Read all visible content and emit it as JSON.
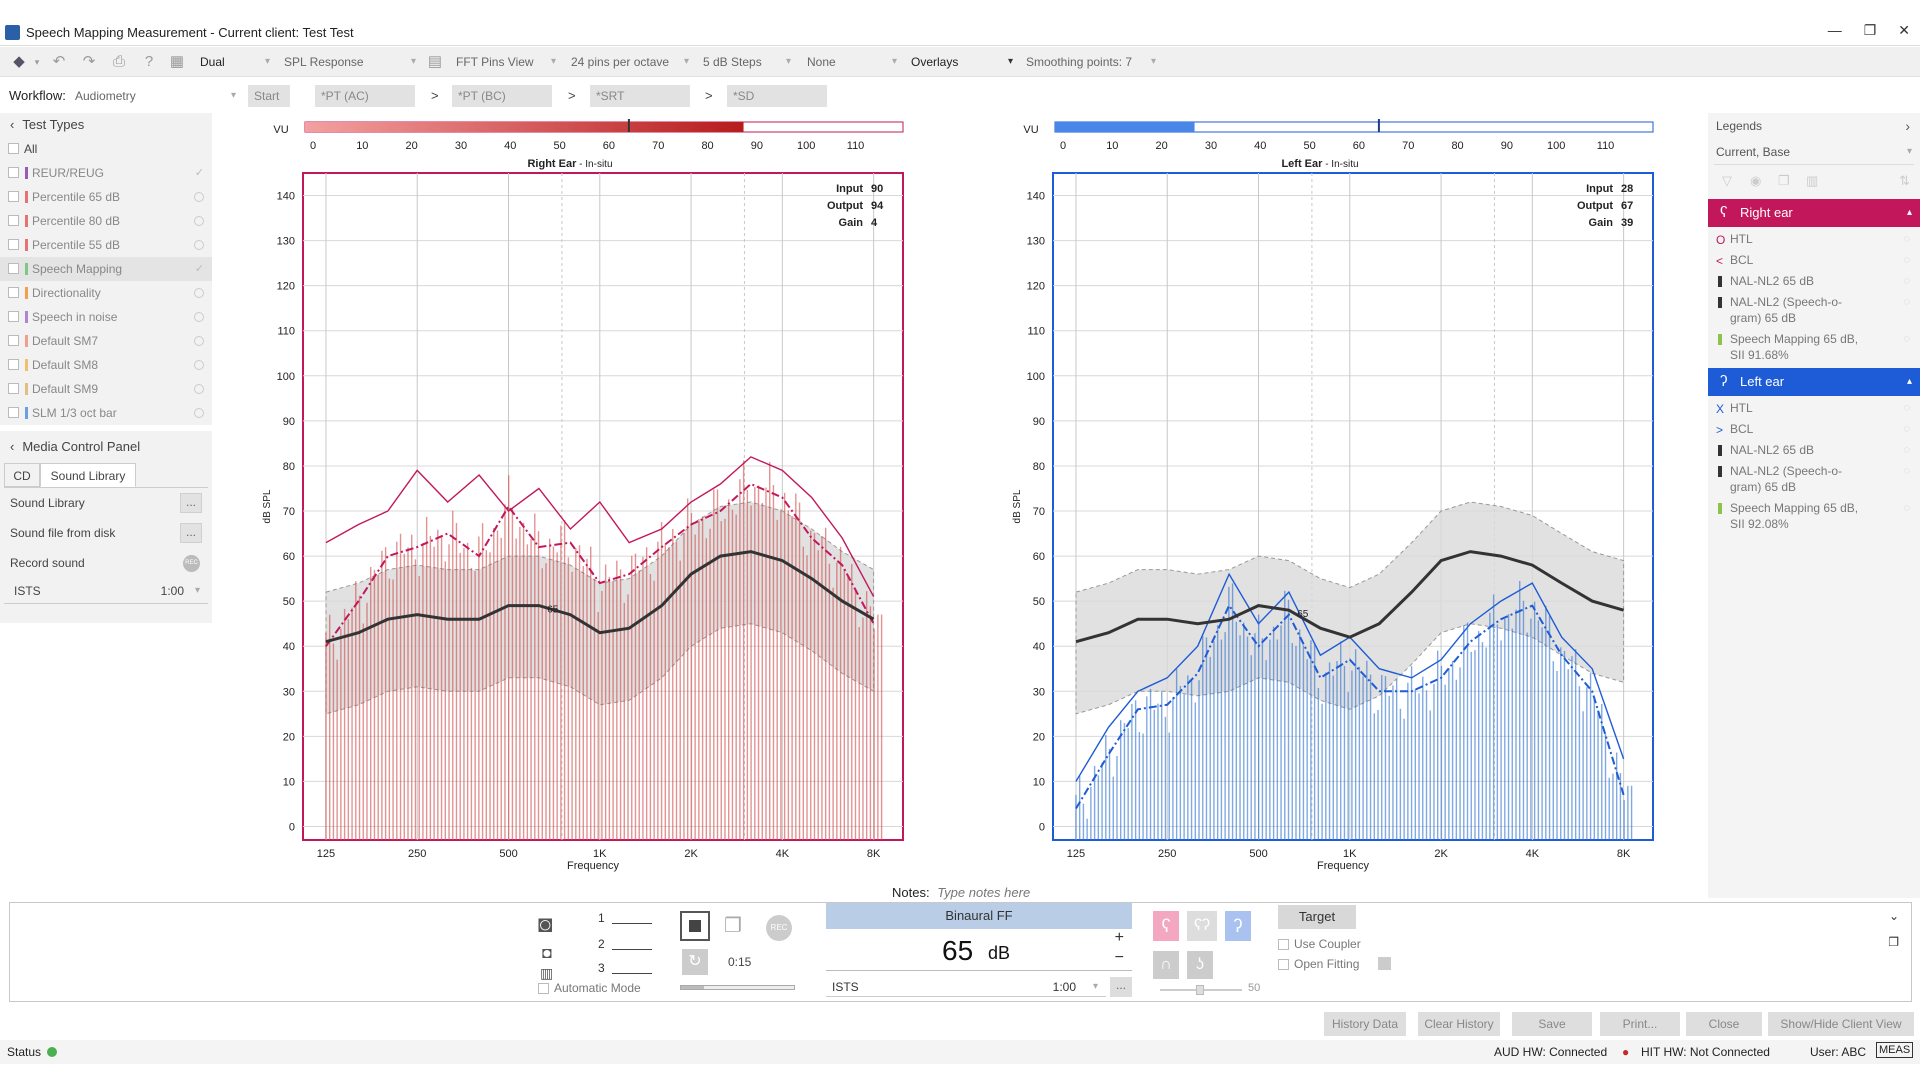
{
  "window": {
    "title": "Speech Mapping Measurement - Current client: Test Test",
    "controls": [
      "—",
      "❐",
      "✕"
    ]
  },
  "toolbar": {
    "mode": "Dual",
    "response": "SPL Response",
    "view": "FFT Pins View",
    "pins": "24 pins per octave",
    "steps": "5 dB Steps",
    "none": "None",
    "overlays": "Overlays",
    "smoothing": "Smoothing points: 7"
  },
  "workflow": {
    "label": "Workflow:",
    "value": "Audiometry",
    "start": "Start",
    "steps": [
      "*PT (AC)",
      "*PT (BC)",
      "*SRT",
      "*SD"
    ],
    "chev": ">"
  },
  "test_types": {
    "header": "Test Types",
    "all": "All",
    "items": [
      {
        "label": "REUR/REUG",
        "color": "#9b59b6",
        "state": "check"
      },
      {
        "label": "Percentile 65 dB",
        "color": "#e57373",
        "state": "radio"
      },
      {
        "label": "Percentile 80 dB",
        "color": "#e57373",
        "state": "radio"
      },
      {
        "label": "Percentile 55 dB",
        "color": "#e57373",
        "state": "radio"
      },
      {
        "label": "Speech Mapping",
        "color": "#81c784",
        "state": "check"
      },
      {
        "label": "Directionality",
        "color": "#f0a050",
        "state": "radio"
      },
      {
        "label": "Speech in noise",
        "color": "#b085d0",
        "state": "radio"
      },
      {
        "label": "Default SM7",
        "color": "#f0a090",
        "state": "radio"
      },
      {
        "label": "Default SM8",
        "color": "#f0c070",
        "state": "radio"
      },
      {
        "label": "Default SM9",
        "color": "#e0c080",
        "state": "radio"
      },
      {
        "label": "SLM 1/3 oct bar",
        "color": "#6aa0e0",
        "state": "radio"
      }
    ]
  },
  "media": {
    "header": "Media Control Panel",
    "tabs": [
      "CD",
      "Sound Library"
    ],
    "rows": [
      {
        "label": "Sound Library",
        "btn": "..."
      },
      {
        "label": "Sound file from disk",
        "btn": "..."
      },
      {
        "label": "Record sound",
        "btn": "REC"
      }
    ],
    "istc": "ISTS",
    "istc_time": "1:00"
  },
  "right_chart": {
    "vu_label": "VU",
    "vu_ticks": [
      "0",
      "10",
      "20",
      "30",
      "40",
      "50",
      "60",
      "70",
      "80",
      "90",
      "100",
      "110"
    ],
    "vu_level": 88,
    "vu_marker": 65,
    "title": "Right Ear",
    "subtitle": "- In-situ",
    "input_label": "Input",
    "input": "90",
    "output_label": "Output",
    "output": "94",
    "gain_label": "Gain",
    "gain": "4",
    "ylabel": "dB SPL",
    "xlabel": "Frequency",
    "marker65": "65",
    "color": "#c2185b"
  },
  "left_chart": {
    "vu_label": "VU",
    "vu_ticks": [
      "0",
      "10",
      "20",
      "30",
      "40",
      "50",
      "60",
      "70",
      "80",
      "90",
      "100",
      "110"
    ],
    "vu_level": 28,
    "vu_marker": 65,
    "title": "Left Ear",
    "subtitle": "- In-situ",
    "input_label": "Input",
    "input": "28",
    "output_label": "Output",
    "output": "67",
    "gain_label": "Gain",
    "gain": "39",
    "ylabel": "dB SPL",
    "xlabel": "Frequency",
    "marker65": "65",
    "color": "#1e5bd6"
  },
  "chart_data": [
    {
      "type": "line",
      "title": "Right Ear - In-situ",
      "xlabel": "Frequency",
      "ylabel": "dB SPL",
      "x": [
        "125",
        "250",
        "500",
        "1K",
        "2K",
        "4K",
        "8K"
      ],
      "yticks": [
        0,
        10,
        20,
        30,
        40,
        50,
        60,
        70,
        80,
        90,
        100,
        110,
        120,
        130,
        140
      ],
      "ylim": [
        -3,
        145
      ],
      "series": [
        {
          "name": "target",
          "x": [
            125,
            160,
            200,
            250,
            315,
            400,
            500,
            630,
            800,
            1000,
            1250,
            1600,
            2000,
            2500,
            3150,
            4000,
            5000,
            6300,
            8000
          ],
          "values": [
            41,
            43,
            46,
            47,
            46,
            46,
            49,
            49,
            47,
            43,
            44,
            49,
            56,
            60,
            61,
            59,
            55,
            50,
            46
          ]
        },
        {
          "name": "upper",
          "x": [
            125,
            160,
            200,
            250,
            315,
            400,
            500,
            630,
            800,
            1000,
            1250,
            1600,
            2000,
            2500,
            3150,
            4000,
            5000,
            6300,
            8000
          ],
          "values": [
            63,
            67,
            70,
            79,
            72,
            78,
            70,
            75,
            66,
            72,
            63,
            66,
            72,
            76,
            82,
            79,
            73,
            64,
            51
          ]
        },
        {
          "name": "spl",
          "x": [
            125,
            160,
            200,
            250,
            315,
            400,
            500,
            630,
            800,
            1000,
            1250,
            1600,
            2000,
            2500,
            3150,
            4000,
            5000,
            6300,
            8000
          ],
          "values": [
            40,
            50,
            60,
            62,
            65,
            60,
            71,
            62,
            63,
            54,
            56,
            62,
            67,
            70,
            76,
            73,
            64,
            58,
            45
          ]
        }
      ]
    },
    {
      "type": "line",
      "title": "Left Ear - In-situ",
      "xlabel": "Frequency",
      "ylabel": "dB SPL",
      "x": [
        "125",
        "250",
        "500",
        "1K",
        "2K",
        "4K",
        "8K"
      ],
      "yticks": [
        0,
        10,
        20,
        30,
        40,
        50,
        60,
        70,
        80,
        90,
        100,
        110,
        120,
        130,
        140
      ],
      "ylim": [
        -3,
        145
      ],
      "series": [
        {
          "name": "target",
          "x": [
            125,
            160,
            200,
            250,
            315,
            400,
            500,
            630,
            800,
            1000,
            1250,
            1600,
            2000,
            2500,
            3150,
            4000,
            5000,
            6300,
            8000
          ],
          "values": [
            41,
            43,
            46,
            46,
            45,
            46,
            49,
            48,
            44,
            42,
            45,
            52,
            59,
            61,
            60,
            58,
            54,
            50,
            48
          ]
        },
        {
          "name": "upper",
          "x": [
            125,
            160,
            200,
            250,
            315,
            400,
            500,
            630,
            800,
            1000,
            1250,
            1600,
            2000,
            2500,
            3150,
            4000,
            5000,
            6300,
            8000
          ],
          "values": [
            10,
            22,
            30,
            33,
            40,
            56,
            45,
            52,
            38,
            42,
            35,
            33,
            37,
            45,
            50,
            54,
            42,
            35,
            15
          ]
        },
        {
          "name": "spl",
          "x": [
            125,
            160,
            200,
            250,
            315,
            400,
            500,
            630,
            800,
            1000,
            1250,
            1600,
            2000,
            2500,
            3150,
            4000,
            5000,
            6300,
            8000
          ],
          "values": [
            4,
            16,
            26,
            27,
            34,
            49,
            40,
            47,
            33,
            37,
            30,
            30,
            33,
            41,
            46,
            49,
            38,
            30,
            7
          ]
        }
      ]
    }
  ],
  "legends": {
    "header": "Legends",
    "filter": "Current, Base",
    "right_ear": {
      "label": "Right ear",
      "color": "#c2185b",
      "items": [
        {
          "marker": "O",
          "label": "HTL"
        },
        {
          "marker": "<",
          "label": "BCL"
        },
        {
          "marker": "bar",
          "label": "NAL-NL2 65 dB"
        },
        {
          "marker": "bar",
          "label": "NAL-NL2 (Speech-o-",
          "label2": "gram) 65 dB"
        },
        {
          "marker": "bar-green",
          "label": "Speech Mapping 65 dB,",
          "label2": "SII 91.68%"
        }
      ]
    },
    "left_ear": {
      "label": "Left ear",
      "color": "#1e5bd6",
      "items": [
        {
          "marker": "X",
          "label": "HTL"
        },
        {
          "marker": ">",
          "label": "BCL"
        },
        {
          "marker": "bar",
          "label": "NAL-NL2 65 dB"
        },
        {
          "marker": "bar",
          "label": "NAL-NL2 (Speech-o-",
          "label2": "gram) 65 dB"
        },
        {
          "marker": "bar-green",
          "label": "Speech Mapping 65 dB,",
          "label2": "SII 92.08%"
        }
      ]
    }
  },
  "notes": {
    "label": "Notes:",
    "placeholder": "Type notes here"
  },
  "controls": {
    "slots": [
      "1",
      "2",
      "3"
    ],
    "auto_mode": "Automatic Mode",
    "timer": "0:15",
    "rec": "REC",
    "binaural": "Binaural FF",
    "level": "65",
    "unit": "dB",
    "plus": "+",
    "minus": "−",
    "signal": "ISTS",
    "signal_time": "1:00",
    "dots": "...",
    "target": "Target",
    "use_coupler": "Use Coupler",
    "open_fitting": "Open Fitting",
    "slider_value": "50"
  },
  "footer": {
    "buttons": [
      "History Data",
      "Clear History",
      "Save",
      "Print...",
      "Close",
      "Show/Hide Client View"
    ]
  },
  "status": {
    "label": "Status",
    "aud": "AUD HW: Connected",
    "hit": "HIT HW: Not Connected",
    "user": "User: ABC",
    "meas": "MEAS"
  }
}
